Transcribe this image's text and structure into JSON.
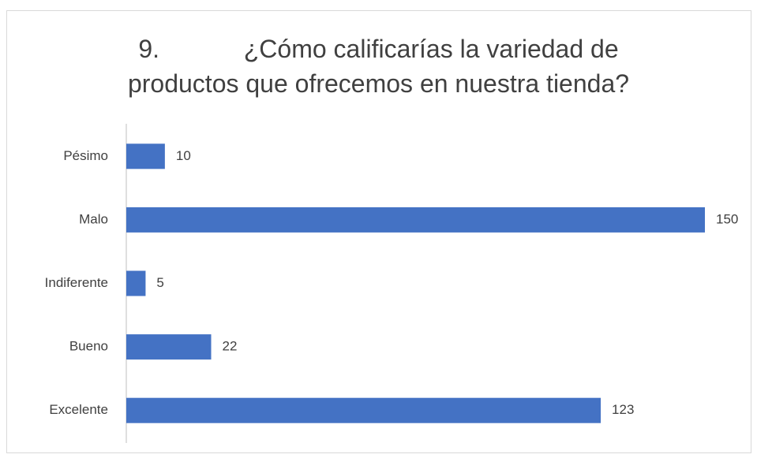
{
  "chart_data": {
    "type": "bar",
    "orientation": "horizontal",
    "title": "9.            ¿Cómo calificarías la variedad de\nproductos que ofrecemos en nuestra tienda?",
    "categories": [
      "Pésimo",
      "Malo",
      "Indiferente",
      "Bueno",
      "Excelente"
    ],
    "values": [
      10,
      150,
      5,
      22,
      123
    ],
    "color": "#4472c4"
  }
}
